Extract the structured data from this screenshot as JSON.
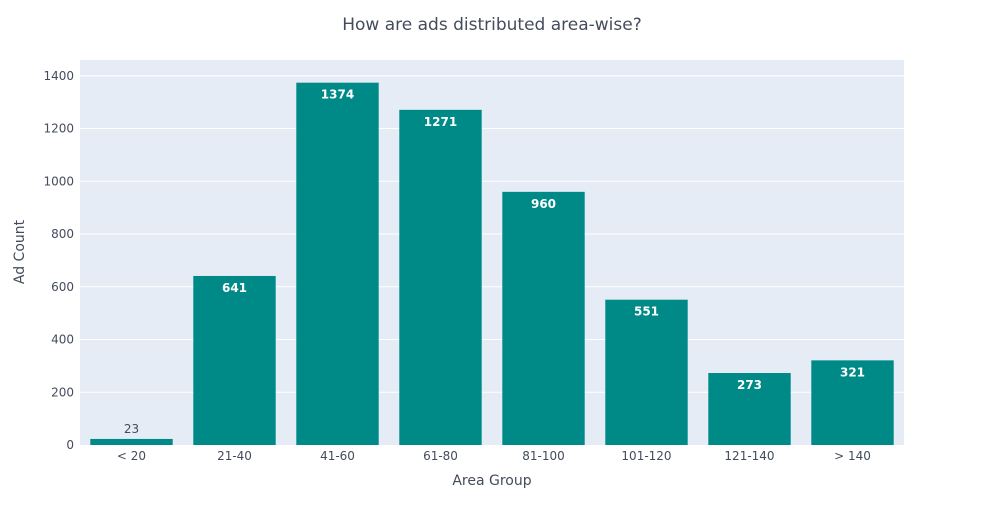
{
  "chart_data": {
    "type": "bar",
    "title": "How are ads distributed area-wise?",
    "xlabel": "Area Group",
    "ylabel": "Ad Count",
    "categories": [
      "< 20",
      "21-40",
      "41-60",
      "61-80",
      "81-100",
      "101-120",
      "121-140",
      "> 140"
    ],
    "values": [
      23,
      641,
      1374,
      1271,
      960,
      551,
      273,
      321
    ],
    "ylim": [
      0,
      1460
    ],
    "yticks": [
      0,
      200,
      400,
      600,
      800,
      1000,
      1200,
      1400
    ],
    "grid": true,
    "legend": "none",
    "colors": {
      "bar": "#008a87",
      "plot_bg": "#e5ecf6"
    }
  }
}
